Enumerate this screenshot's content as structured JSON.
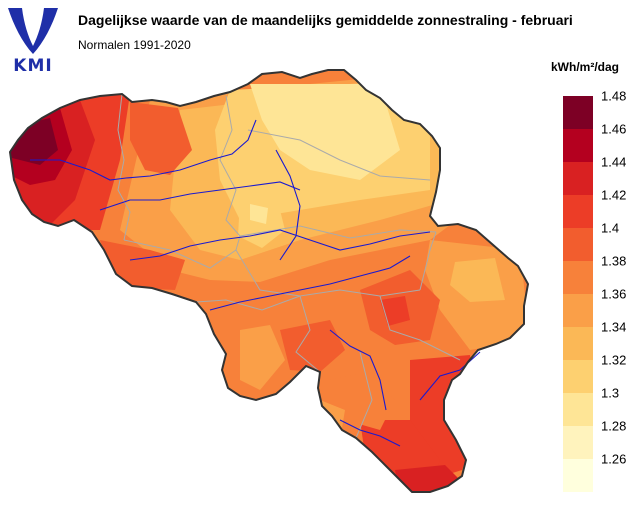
{
  "header": {
    "logo_text": "KMI",
    "title": "Dagelijkse waarde van de maandelijks gemiddelde zonnestraling - februari",
    "subtitle": "Normalen 1991-2020"
  },
  "legend": {
    "unit": "kWh/m²/dag",
    "labels": [
      "1.48",
      "1.46",
      "1.44",
      "1.42",
      "1.4",
      "1.38",
      "1.36",
      "1.34",
      "1.32",
      "1.3",
      "1.28",
      "1.26"
    ],
    "colors": [
      "#7d0025",
      "#b4001f",
      "#d92122",
      "#ec3d27",
      "#f25d2e",
      "#f7813a",
      "#fa9f48",
      "#fbb856",
      "#fdd070",
      "#fee596",
      "#fff3bd",
      "#ffffdd"
    ]
  },
  "colors": {
    "border": "#333333",
    "province_lines": "#aaaaaa",
    "rivers": "#1a1ad0",
    "logo": "#1f2fa8"
  }
}
